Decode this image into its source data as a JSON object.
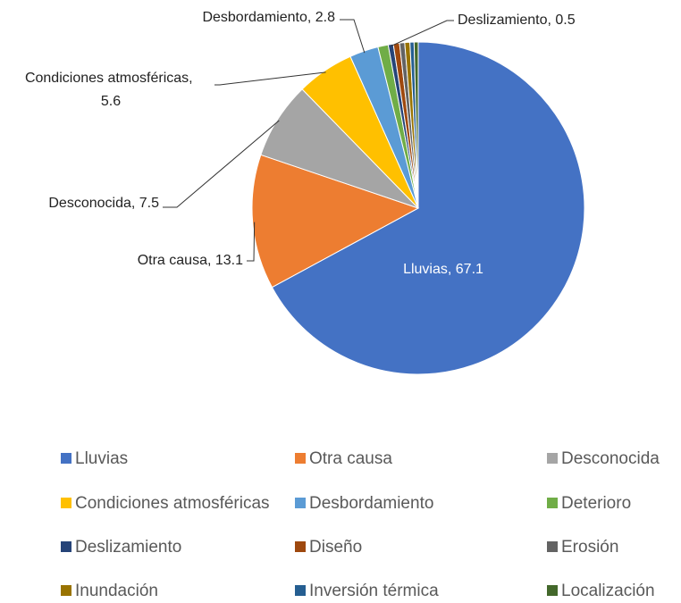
{
  "chart_data": {
    "type": "pie",
    "categories": [
      "Lluvias",
      "Otra causa",
      "Desconocida",
      "Condiciones atmosféricas",
      "Desbordamiento",
      "Deterioro",
      "Deslizamiento",
      "Diseño",
      "Erosión",
      "Inundación",
      "Inversión térmica",
      "Localización"
    ],
    "values": [
      67.1,
      13.1,
      7.5,
      5.6,
      2.8,
      1.0,
      0.5,
      0.6,
      0.5,
      0.5,
      0.4,
      0.4
    ],
    "colors": [
      "#4472c4",
      "#ed7d31",
      "#a5a5a5",
      "#ffc000",
      "#5b9bd5",
      "#70ad47",
      "#264478",
      "#9e480e",
      "#636363",
      "#997300",
      "#255e91",
      "#43682b"
    ],
    "data_labels": [
      true,
      true,
      true,
      true,
      true,
      false,
      true,
      false,
      false,
      false,
      false,
      false
    ],
    "legend": "bottom"
  }
}
